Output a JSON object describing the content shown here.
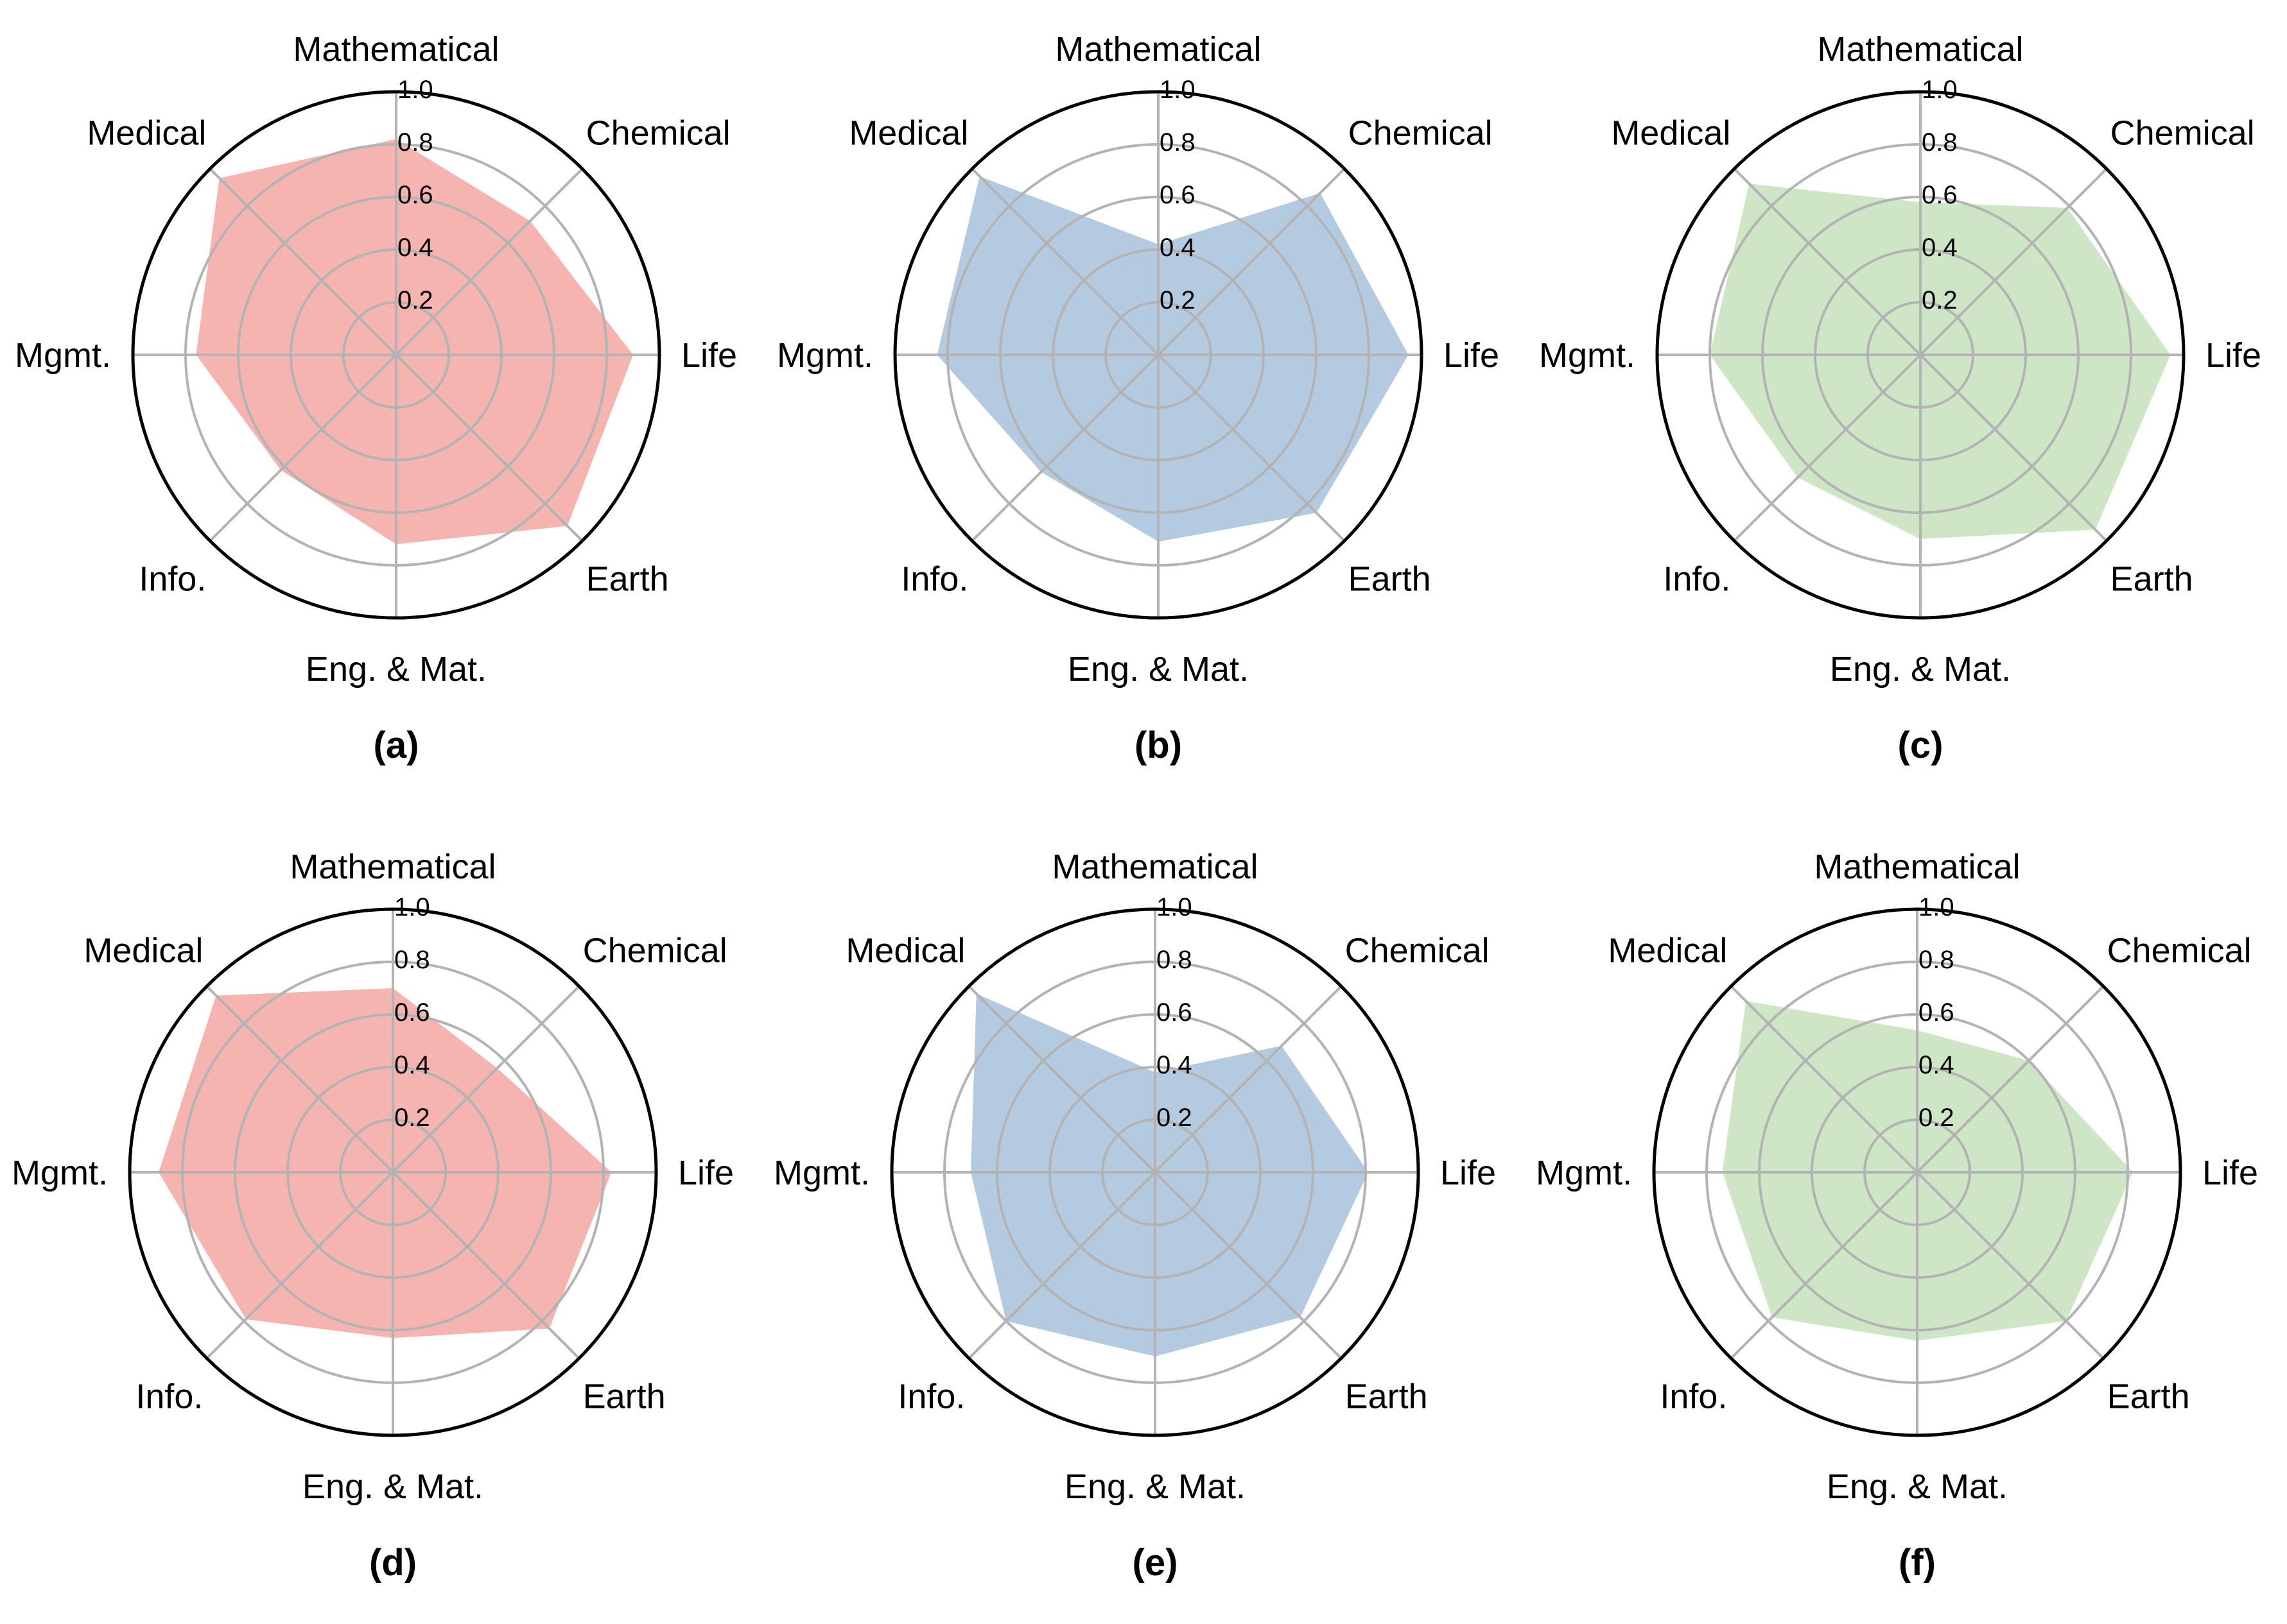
{
  "chart_data": [
    {
      "type": "radar",
      "panel_label": "(a)",
      "color": "#f4a7a2",
      "categories": [
        "Mathematical",
        "Chemical",
        "Life",
        "Earth",
        "Eng. & Mat.",
        "Info.",
        "Mgmt.",
        "Medical"
      ],
      "values": [
        0.82,
        0.72,
        0.9,
        0.92,
        0.72,
        0.62,
        0.76,
        0.95
      ],
      "rlim": [
        0,
        1.0
      ],
      "rticks": [
        "0.2",
        "0.4",
        "0.6",
        "0.8",
        "1.0"
      ]
    },
    {
      "type": "radar",
      "panel_label": "(b)",
      "color": "#a7c1dc",
      "categories": [
        "Mathematical",
        "Chemical",
        "Life",
        "Earth",
        "Eng. & Mat.",
        "Info.",
        "Mgmt.",
        "Medical"
      ],
      "values": [
        0.42,
        0.87,
        0.95,
        0.85,
        0.71,
        0.63,
        0.84,
        0.96
      ],
      "rlim": [
        0,
        1.0
      ],
      "rticks": [
        "0.2",
        "0.4",
        "0.6",
        "0.8",
        "1.0"
      ]
    },
    {
      "type": "radar",
      "panel_label": "(c)",
      "color": "#c5e1bc",
      "categories": [
        "Mathematical",
        "Chemical",
        "Life",
        "Earth",
        "Eng. & Mat.",
        "Info.",
        "Mgmt.",
        "Medical"
      ],
      "values": [
        0.58,
        0.79,
        0.95,
        0.94,
        0.7,
        0.66,
        0.8,
        0.92
      ],
      "rlim": [
        0,
        1.0
      ],
      "rticks": [
        "0.2",
        "0.4",
        "0.6",
        "0.8",
        "1.0"
      ]
    },
    {
      "type": "radar",
      "panel_label": "(d)",
      "color": "#f4a7a2",
      "categories": [
        "Mathematical",
        "Chemical",
        "Life",
        "Earth",
        "Eng. & Mat.",
        "Info.",
        "Mgmt.",
        "Medical"
      ],
      "values": [
        0.7,
        0.56,
        0.83,
        0.84,
        0.63,
        0.79,
        0.89,
        0.95
      ],
      "rlim": [
        0,
        1.0
      ],
      "rticks": [
        "0.2",
        "0.4",
        "0.6",
        "0.8",
        "1.0"
      ]
    },
    {
      "type": "radar",
      "panel_label": "(e)",
      "color": "#a7c1dc",
      "categories": [
        "Mathematical",
        "Chemical",
        "Life",
        "Earth",
        "Eng. & Mat.",
        "Info.",
        "Mgmt.",
        "Medical"
      ],
      "values": [
        0.38,
        0.68,
        0.81,
        0.78,
        0.7,
        0.8,
        0.7,
        0.96
      ],
      "rlim": [
        0,
        1.0
      ],
      "rticks": [
        "0.2",
        "0.4",
        "0.6",
        "0.8",
        "1.0"
      ]
    },
    {
      "type": "radar",
      "panel_label": "(f)",
      "color": "#c5e1bc",
      "categories": [
        "Mathematical",
        "Chemical",
        "Life",
        "Earth",
        "Eng. & Mat.",
        "Info.",
        "Mgmt.",
        "Medical"
      ],
      "values": [
        0.54,
        0.6,
        0.82,
        0.8,
        0.64,
        0.78,
        0.74,
        0.92
      ],
      "rlim": [
        0,
        1.0
      ],
      "rticks": [
        "0.2",
        "0.4",
        "0.6",
        "0.8",
        "1.0"
      ]
    }
  ]
}
